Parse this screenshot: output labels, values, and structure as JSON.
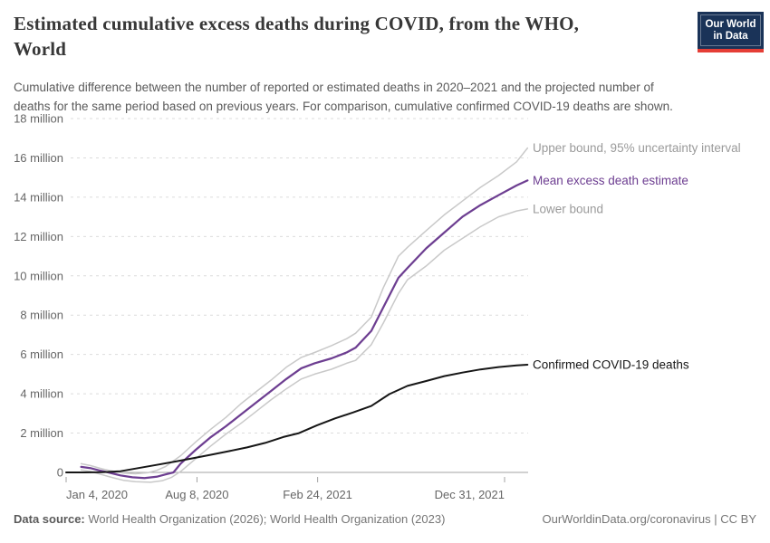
{
  "header": {
    "title": "Estimated cumulative excess deaths during COVID, from the WHO, World",
    "title_lines": [
      "Estimated cumulative excess deaths during COVID, from the WHO,",
      "World"
    ],
    "subtitle_lines": [
      "Cumulative difference between the number of reported or estimated deaths in 2020–2021 and the projected number of",
      "deaths for the same period based on previous years. For comparison, cumulative confirmed COVID-19 deaths are shown."
    ],
    "logo": {
      "line1": "Our World",
      "line2": "in Data",
      "bg_color": "#1a3358",
      "accent_color": "#e53e36"
    }
  },
  "footer": {
    "source_label": "Data source:",
    "source_text": " World Health Organization (2026); World Health Organization (2023)",
    "credit": "OurWorldinData.org/coronavirus | CC BY"
  },
  "chart_data": {
    "type": "line",
    "title": "Estimated cumulative excess deaths during COVID, from the WHO, World",
    "x_unit": "days since 2020-01-04",
    "x_domain_days": [
      0,
      765
    ],
    "ylim": [
      -0.6,
      18
    ],
    "y_unit": "million deaths",
    "grid": "dashed horizontal",
    "legend_position": "right-of-line-ends",
    "y_axis": {
      "ticks": [
        {
          "v": 0,
          "label": "0"
        },
        {
          "v": 2,
          "label": "2 million"
        },
        {
          "v": 4,
          "label": "4 million"
        },
        {
          "v": 6,
          "label": "6 million"
        },
        {
          "v": 8,
          "label": "8 million"
        },
        {
          "v": 10,
          "label": "10 million"
        },
        {
          "v": 12,
          "label": "12 million"
        },
        {
          "v": 14,
          "label": "14 million"
        },
        {
          "v": 16,
          "label": "16 million"
        },
        {
          "v": 18,
          "label": "18 million"
        }
      ]
    },
    "x_axis": {
      "ticks": [
        {
          "day": 0,
          "label": "Jan 4, 2020",
          "anchor": "start"
        },
        {
          "day": 217,
          "label": "Aug 8, 2020",
          "anchor": "middle"
        },
        {
          "day": 417,
          "label": "Feb 24, 2021",
          "anchor": "middle"
        },
        {
          "day": 727,
          "label": "Dec 31, 2021",
          "anchor": "end"
        }
      ]
    },
    "series": [
      {
        "id": "upper-bound",
        "name": "Upper bound, 95% uncertainty interval",
        "color": "#c9c9c9",
        "label_color": "#9a9a9a",
        "width": 1.5,
        "points": [
          [
            25,
            0.44
          ],
          [
            40,
            0.35
          ],
          [
            60,
            0.18
          ],
          [
            75,
            0.08
          ],
          [
            95,
            -0.03
          ],
          [
            115,
            -0.07
          ],
          [
            135,
            -0.02
          ],
          [
            150,
            0.1
          ],
          [
            165,
            0.3
          ],
          [
            190,
            0.85
          ],
          [
            215,
            1.55
          ],
          [
            240,
            2.2
          ],
          [
            265,
            2.8
          ],
          [
            290,
            3.5
          ],
          [
            315,
            4.1
          ],
          [
            340,
            4.7
          ],
          [
            365,
            5.35
          ],
          [
            390,
            5.85
          ],
          [
            412,
            6.1
          ],
          [
            440,
            6.45
          ],
          [
            465,
            6.8
          ],
          [
            480,
            7.08
          ],
          [
            506,
            7.9
          ],
          [
            526,
            9.4
          ],
          [
            551,
            11.0
          ],
          [
            566,
            11.45
          ],
          [
            597,
            12.3
          ],
          [
            627,
            13.1
          ],
          [
            657,
            13.8
          ],
          [
            687,
            14.5
          ],
          [
            717,
            15.1
          ],
          [
            747,
            15.8
          ],
          [
            765,
            16.5
          ]
        ]
      },
      {
        "id": "mean-excess-deaths",
        "name": "Mean excess death estimate",
        "color": "#6d3e91",
        "label_color": "#6d3e91",
        "width": 2.25,
        "points": [
          [
            25,
            0.28
          ],
          [
            40,
            0.22
          ],
          [
            55,
            0.1
          ],
          [
            70,
            0.0
          ],
          [
            90,
            -0.15
          ],
          [
            110,
            -0.25
          ],
          [
            130,
            -0.29
          ],
          [
            150,
            -0.22
          ],
          [
            165,
            -0.1
          ],
          [
            178,
            0.0
          ],
          [
            190,
            0.45
          ],
          [
            215,
            1.15
          ],
          [
            240,
            1.8
          ],
          [
            265,
            2.35
          ],
          [
            290,
            2.95
          ],
          [
            315,
            3.55
          ],
          [
            340,
            4.15
          ],
          [
            365,
            4.75
          ],
          [
            390,
            5.3
          ],
          [
            412,
            5.55
          ],
          [
            440,
            5.8
          ],
          [
            465,
            6.1
          ],
          [
            480,
            6.35
          ],
          [
            506,
            7.2
          ],
          [
            526,
            8.4
          ],
          [
            551,
            9.9
          ],
          [
            566,
            10.4
          ],
          [
            597,
            11.4
          ],
          [
            627,
            12.2
          ],
          [
            657,
            13.0
          ],
          [
            687,
            13.6
          ],
          [
            717,
            14.1
          ],
          [
            747,
            14.6
          ],
          [
            765,
            14.85
          ]
        ]
      },
      {
        "id": "lower-bound",
        "name": "Lower bound",
        "color": "#c9c9c9",
        "label_color": "#9a9a9a",
        "width": 1.5,
        "points": [
          [
            25,
            0.13
          ],
          [
            40,
            0.05
          ],
          [
            55,
            -0.08
          ],
          [
            75,
            -0.25
          ],
          [
            95,
            -0.4
          ],
          [
            115,
            -0.47
          ],
          [
            140,
            -0.5
          ],
          [
            160,
            -0.42
          ],
          [
            175,
            -0.25
          ],
          [
            190,
            0.05
          ],
          [
            215,
            0.7
          ],
          [
            240,
            1.35
          ],
          [
            265,
            1.95
          ],
          [
            290,
            2.5
          ],
          [
            315,
            3.1
          ],
          [
            340,
            3.7
          ],
          [
            365,
            4.25
          ],
          [
            390,
            4.75
          ],
          [
            412,
            5.0
          ],
          [
            440,
            5.25
          ],
          [
            465,
            5.55
          ],
          [
            480,
            5.7
          ],
          [
            506,
            6.5
          ],
          [
            526,
            7.6
          ],
          [
            551,
            9.1
          ],
          [
            566,
            9.8
          ],
          [
            597,
            10.5
          ],
          [
            627,
            11.3
          ],
          [
            657,
            11.9
          ],
          [
            687,
            12.5
          ],
          [
            717,
            13.0
          ],
          [
            747,
            13.3
          ],
          [
            765,
            13.4
          ]
        ]
      },
      {
        "id": "confirmed-deaths",
        "name": "Confirmed COVID-19 deaths",
        "color": "#161616",
        "label_color": "#161616",
        "width": 2,
        "points": [
          [
            0,
            0.0
          ],
          [
            30,
            0.0
          ],
          [
            60,
            0.01
          ],
          [
            90,
            0.06
          ],
          [
            120,
            0.22
          ],
          [
            150,
            0.38
          ],
          [
            180,
            0.55
          ],
          [
            210,
            0.72
          ],
          [
            240,
            0.9
          ],
          [
            270,
            1.08
          ],
          [
            300,
            1.27
          ],
          [
            330,
            1.5
          ],
          [
            360,
            1.8
          ],
          [
            386,
            2.0
          ],
          [
            416,
            2.4
          ],
          [
            446,
            2.75
          ],
          [
            476,
            3.05
          ],
          [
            506,
            3.38
          ],
          [
            536,
            3.98
          ],
          [
            566,
            4.4
          ],
          [
            597,
            4.65
          ],
          [
            627,
            4.9
          ],
          [
            657,
            5.08
          ],
          [
            687,
            5.24
          ],
          [
            717,
            5.36
          ],
          [
            747,
            5.44
          ],
          [
            765,
            5.48
          ]
        ]
      }
    ],
    "colors": {
      "gridline": "#dcdcdc",
      "axis_line": "#a3a3a3",
      "tick_text": "#666666"
    }
  }
}
